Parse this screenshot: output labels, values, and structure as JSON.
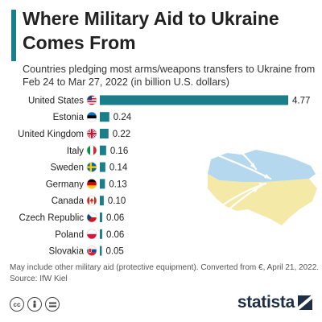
{
  "header": {
    "title": "Where Military Aid to Ukraine Comes From",
    "subtitle": "Countries pledging most arms/weapons transfers to Ukraine from Feb 24 to Mar 27, 2022 (in billion U.S. dollars)"
  },
  "chart_data": {
    "type": "bar",
    "orientation": "horizontal",
    "title": "Where Military Aid to Ukraine Comes From",
    "subtitle": "Countries pledging most arms/weapons transfers to Ukraine from Feb 24 to Mar 27, 2022 (in billion U.S. dollars)",
    "categories": [
      "United States",
      "Estonia",
      "United Kingdom",
      "Italy",
      "Sweden",
      "Germany",
      "Canada",
      "Czech Republic",
      "Poland",
      "Slovakia"
    ],
    "values": [
      4.77,
      0.24,
      0.22,
      0.16,
      0.14,
      0.13,
      0.1,
      0.06,
      0.06,
      0.05
    ],
    "value_labels": [
      "4.77",
      "0.24",
      "0.22",
      "0.16",
      "0.14",
      "0.13",
      "0.10",
      "0.06",
      "0.06",
      "0.05"
    ],
    "xlim": [
      0,
      4.77
    ],
    "grid": false,
    "bar_color": "#1a7f8a",
    "flag_icons": [
      "us-flag-icon",
      "estonia-flag-icon",
      "uk-flag-icon",
      "italy-flag-icon",
      "sweden-flag-icon",
      "germany-flag-icon",
      "canada-flag-icon",
      "czech-flag-icon",
      "poland-flag-icon",
      "slovakia-flag-icon"
    ]
  },
  "illustration": {
    "map_icon": "ukraine-map-icon",
    "map_colors": {
      "top": "#b5d8ee",
      "bottom": "#f4e9a6"
    }
  },
  "footer": {
    "note": "May include other military aid (protective equipment). Converted from €, April 21, 2022.",
    "source": "Source: IfW Kiel",
    "brand": "statista",
    "license_icons": [
      "cc-icon",
      "attribution-icon",
      "no-derivatives-icon"
    ]
  },
  "colors": {
    "accent": "#1a7f8a",
    "brand": "#1e2f45"
  }
}
